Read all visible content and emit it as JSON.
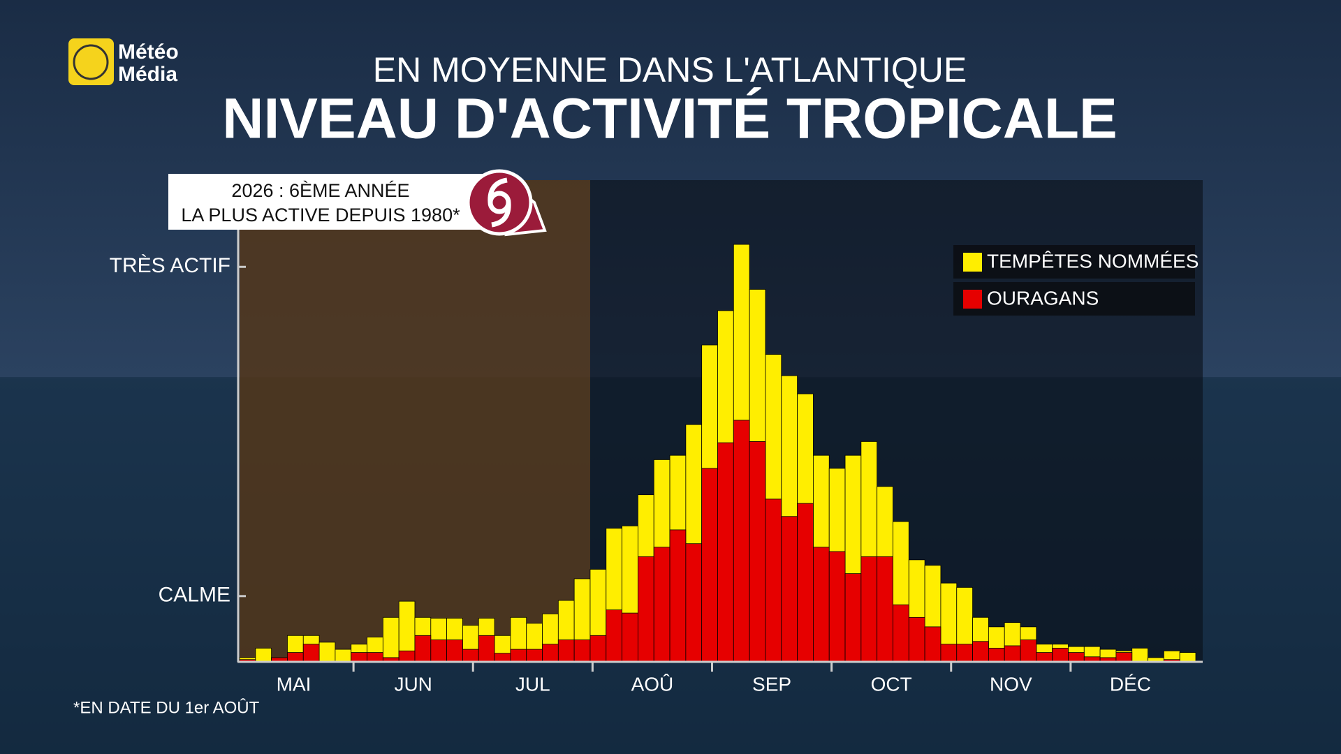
{
  "logo": {
    "line1": "Météo",
    "line2": "Média"
  },
  "chart_data": {
    "type": "bar",
    "barmode": "overlay",
    "subtitle": "EN MOYENNE DANS L'ATLANTIQUE",
    "title": "NIVEAU D'ACTIVITÉ TROPICALE",
    "annotation": {
      "line1": "2026 : 6ÈME ANNÉE",
      "line2": "LA PLUS ACTIVE DEPUIS 1980*"
    },
    "footnote": "*EN DATE DU 1er AOÛT",
    "months": [
      "MAI",
      "JUN",
      "JUL",
      "AOÛ",
      "SEP",
      "OCT",
      "NOV",
      "DÉC"
    ],
    "categories": [
      null,
      null,
      null,
      null,
      null,
      null,
      null,
      null,
      null,
      null,
      null,
      null,
      null,
      null,
      null,
      null,
      null,
      null,
      null,
      null,
      null,
      null,
      null,
      null,
      null,
      null,
      null,
      null,
      null,
      null,
      null,
      null,
      null,
      null,
      null,
      null,
      null,
      null,
      null,
      null,
      null,
      null,
      null,
      null,
      null,
      null,
      null,
      null,
      null,
      null,
      null,
      null,
      null,
      null,
      null,
      null,
      null,
      null,
      null,
      null
    ],
    "shaded_until_index": 22,
    "ylim": [
      0,
      122
    ],
    "yticks": [
      {
        "value": 16.5,
        "label": "CALME"
      },
      {
        "value": 100,
        "label": "TRÈS ACTIF"
      }
    ],
    "series": [
      {
        "name": "TEMPÊTES NOMMÉES",
        "color": "#ffee00",
        "values": [
          0.9,
          3.3,
          0.9,
          6.5,
          6.5,
          4.8,
          3.0,
          4.3,
          6.1,
          11.1,
          15.2,
          11.1,
          10.9,
          10.9,
          9.1,
          10.9,
          6.5,
          11.1,
          9.6,
          12.0,
          15.4,
          20.9,
          23.3,
          33.7,
          34.3,
          42.2,
          51.1,
          52.2,
          60.0,
          80.2,
          88.9,
          105.7,
          94.3,
          77.8,
          72.4,
          67.8,
          52.2,
          48.9,
          52.2,
          55.7,
          44.3,
          35.4,
          25.7,
          24.3,
          19.8,
          18.7,
          11.1,
          8.7,
          9.8,
          8.7,
          4.3,
          4.3,
          3.7,
          3.7,
          3.0,
          2.6,
          3.3,
          0.9,
          2.6,
          2.2
        ]
      },
      {
        "name": "OURAGANS",
        "color": "#e60000",
        "values": [
          0.4,
          0,
          0.9,
          2.2,
          4.3,
          0,
          0,
          2.2,
          2.2,
          0.9,
          2.6,
          6.5,
          5.4,
          5.4,
          3.0,
          6.5,
          2.0,
          3.0,
          3.0,
          4.3,
          5.4,
          5.4,
          6.5,
          13.0,
          12.2,
          26.5,
          28.9,
          33.3,
          29.8,
          48.9,
          55.4,
          61.1,
          55.7,
          41.1,
          36.7,
          40.0,
          28.9,
          27.8,
          22.2,
          26.5,
          26.5,
          14.3,
          11.1,
          8.7,
          4.3,
          4.3,
          5.0,
          3.3,
          3.9,
          5.4,
          2.2,
          3.3,
          2.2,
          1.1,
          0.9,
          2.2,
          0,
          0,
          0.4,
          0
        ]
      }
    ]
  }
}
